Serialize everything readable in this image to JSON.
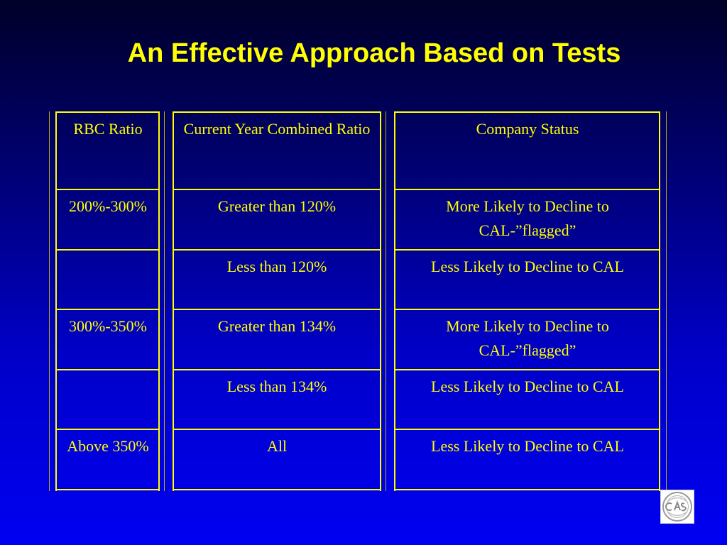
{
  "slide": {
    "title": "An Effective Approach Based on Tests"
  },
  "table": {
    "headers": {
      "rbc": "RBC Ratio",
      "combined": "Current Year Combined Ratio",
      "status": "Company Status"
    },
    "rows": [
      {
        "rbc": "200%-300%",
        "combined": "Greater than 120%",
        "status": "More Likely to Decline to CAL-”flagged”"
      },
      {
        "rbc": "",
        "combined": "Less than 120%",
        "status": "Less Likely to Decline to CAL"
      },
      {
        "rbc": "300%-350%",
        "combined": "Greater than 134%",
        "status": "More Likely to Decline to CAL-”flagged”"
      },
      {
        "rbc": "",
        "combined": "Less than 134%",
        "status": "Less Likely to Decline to CAL"
      },
      {
        "rbc": "Above 350%",
        "combined": "All",
        "status": "Less Likely to Decline to CAL"
      }
    ]
  },
  "logo": {
    "text": "CAS",
    "icon": "cas-seal-logo"
  }
}
